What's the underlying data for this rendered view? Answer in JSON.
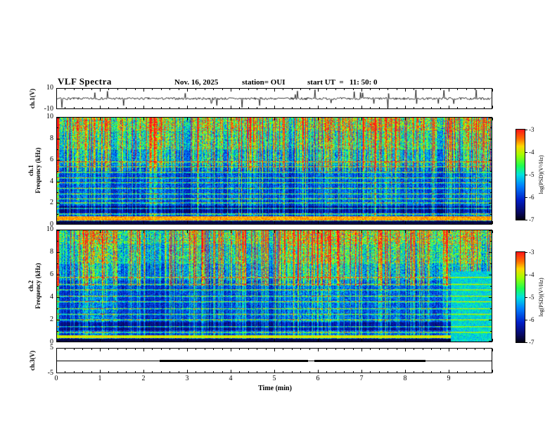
{
  "header": {
    "title": "VLF Spectra",
    "date": "Nov. 16, 2025",
    "station": "station= OUI",
    "start_ut": "start UT  =   11: 50: 0"
  },
  "axes": {
    "x": {
      "label": "Time (min)",
      "range_min": [
        0,
        10
      ],
      "ticks": [
        0,
        1,
        2,
        3,
        4,
        5,
        6,
        7,
        8,
        9
      ],
      "minutes_per_tick": 1
    }
  },
  "chart_data": [
    {
      "type": "line",
      "panel": "ch1-waveform",
      "ylabel": "ch.1(V)",
      "ylim": [
        -10,
        10
      ],
      "yticks": [
        10,
        -10
      ],
      "xlim_min": [
        0,
        10
      ],
      "description": "Broadband noise trace centered on 0 V with ~25 sporadic impulsive spikes reaching toward ±10 V"
    },
    {
      "type": "heatmap",
      "panel": "ch1-spectrogram",
      "ylabel_ch": "ch.1",
      "ylabel_freq": "Frequency (kHz)",
      "ylim_kHz": [
        0,
        10
      ],
      "yticks": [
        0,
        2,
        4,
        6,
        8,
        10
      ],
      "xlim_min": [
        0,
        10
      ],
      "colorbar": {
        "label": "log(PSD)(V²/Hz)",
        "ticks": [
          -3,
          -4,
          -5,
          -6,
          -7
        ],
        "range": [
          -7,
          -3
        ],
        "colormap": "jet"
      },
      "render_features": {
        "summary": "dense vertical sferic streaks across full band, brightest (green/yellow/red) above 5 kHz; solid green band 8.8-10 kHz; dark blue background 2-5.5 kHz crossed by narrow green horizontal lines",
        "horizontal_lines_kHz": [
          0.95,
          1.5,
          2.05,
          2.45,
          2.9,
          3.4,
          3.9,
          4.4,
          4.9,
          5.4,
          5.9
        ],
        "dark_band_kHz": [
          1.05,
          1.7
        ],
        "red_band": {
          "kHz": [
            0.35,
            0.75
          ],
          "level": 0.8
        },
        "black_below_kHz": 0.3,
        "base_boost": 0
      }
    },
    {
      "type": "heatmap",
      "panel": "ch2-spectrogram",
      "ylabel_ch": "ch.2",
      "ylabel_freq": "Frequency (kHz)",
      "ylim_kHz": [
        0,
        10
      ],
      "yticks": [
        0,
        2,
        4,
        6,
        8,
        10
      ],
      "xlim_min": [
        0,
        10
      ],
      "colorbar": {
        "label": "log(PSD)(V²/Hz)",
        "ticks": [
          -3,
          -4,
          -5,
          -6,
          -7
        ],
        "range": [
          -7,
          -3
        ],
        "colormap": "jet"
      },
      "render_features": {
        "summary": "similar sferic streak field, slightly brighter mid-band; uniform cyan/green block after ~9 min below ~6.4 kHz",
        "horizontal_lines_kHz": [
          0.9,
          1.4,
          2.0,
          2.5,
          3.0,
          3.6,
          4.1,
          4.7,
          5.2,
          5.8
        ],
        "dark_band_kHz": [
          1.0,
          1.8
        ],
        "red_band": {
          "kHz": [
            0.35,
            0.6
          ],
          "level": 0.72
        },
        "black_below_kHz": 0.3,
        "base_boost": 0.03,
        "cyan_block": {
          "t_start_min": 9.05,
          "f_max_kHz": 6.35
        }
      }
    },
    {
      "type": "line",
      "panel": "ch3-trace",
      "ylabel": "ch.3(V)",
      "ylim": [
        -5,
        5
      ],
      "yticks": [
        5,
        -5
      ],
      "baseline_value": 0,
      "thick_segments_min": [
        [
          2.35,
          5.75
        ],
        [
          5.9,
          8.45
        ]
      ],
      "description": "flat line at 0 V for full 0-10 min with two thick (high/active) segments"
    }
  ]
}
